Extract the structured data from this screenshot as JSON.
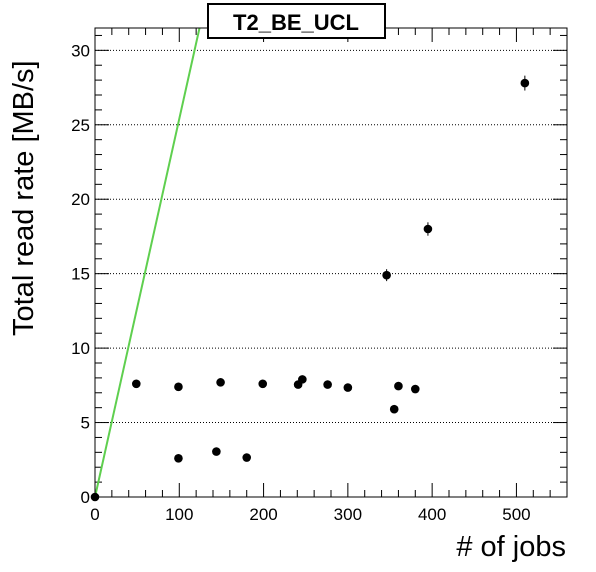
{
  "chart_data": {
    "type": "scatter",
    "title": "T2_BE_UCL",
    "xlabel": "# of jobs",
    "ylabel": "Total read rate [MB/s]",
    "xlim": [
      0,
      560
    ],
    "ylim": [
      0,
      31.5
    ],
    "xticks": [
      0,
      100,
      200,
      300,
      400,
      500
    ],
    "yticks": [
      0,
      5,
      10,
      15,
      20,
      25,
      30
    ],
    "grid": {
      "x": false,
      "y": true,
      "style": "dotted"
    },
    "colors": {
      "points": "#000000",
      "line": "#5fcf4f",
      "frame": "#000000"
    },
    "series": [
      {
        "type": "scatter",
        "x": [
          0,
          49,
          99,
          99,
          144,
          149,
          180,
          199,
          241,
          246,
          276,
          300,
          346,
          355,
          360,
          380,
          395,
          510
        ],
        "y": [
          0.0,
          7.6,
          7.4,
          2.6,
          3.05,
          7.7,
          2.65,
          7.6,
          7.55,
          7.9,
          7.55,
          7.35,
          14.9,
          5.9,
          7.45,
          7.25,
          18.0,
          27.8
        ],
        "yerr": [
          0.1,
          0.15,
          0.15,
          0.1,
          0.1,
          0.15,
          0.1,
          0.15,
          0.15,
          0.2,
          0.15,
          0.15,
          0.4,
          0.2,
          0.15,
          0.15,
          0.45,
          0.5
        ]
      },
      {
        "type": "line",
        "x": [
          0,
          124
        ],
        "y": [
          0,
          31.5
        ]
      }
    ]
  }
}
